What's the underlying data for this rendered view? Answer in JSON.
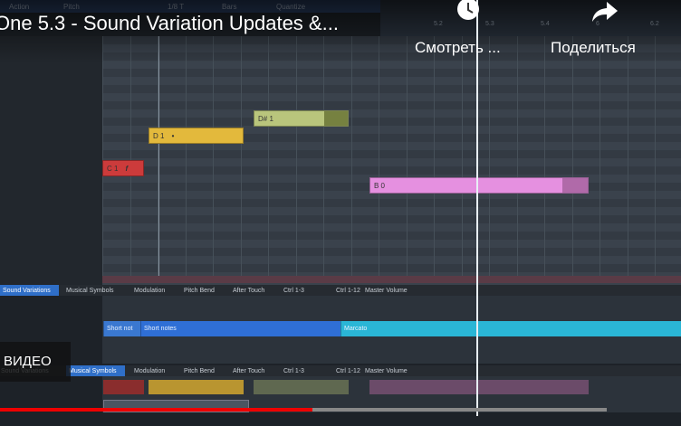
{
  "toolbar": {
    "action": "Action",
    "pitch": "Pitch",
    "grid": "1/8 T",
    "bars": "Bars",
    "quantize": "Quantize"
  },
  "ruler": [
    "5.2",
    "5.3",
    "5.4",
    "6",
    "6.2"
  ],
  "video": {
    "title": "One 5.3 - Sound Variation Updates &...",
    "watch_later": "Смотреть ...",
    "share": "Поделиться",
    "more_videos": "ВИДЕО"
  },
  "notes": [
    {
      "label": "D# 1"
    },
    {
      "label": "D 1",
      "symbol": "•"
    },
    {
      "label": "C 1",
      "symbol": "f"
    },
    {
      "label": "B 0"
    }
  ],
  "tabs_top": [
    "Sound Variations",
    "Musical Symbols",
    "Modulation",
    "Pitch Bend",
    "After Touch",
    "Ctrl 1-3",
    "Ctrl 1-12",
    "Master Volume"
  ],
  "lane": [
    "Short not",
    "Short notes",
    "Marcato"
  ],
  "tabs_bottom": [
    "Sound Variations",
    "Musical Symbols",
    "Modulation",
    "Pitch Bend",
    "After Touch",
    "Ctrl 1-3",
    "Ctrl 1-12",
    "Master Volume"
  ]
}
